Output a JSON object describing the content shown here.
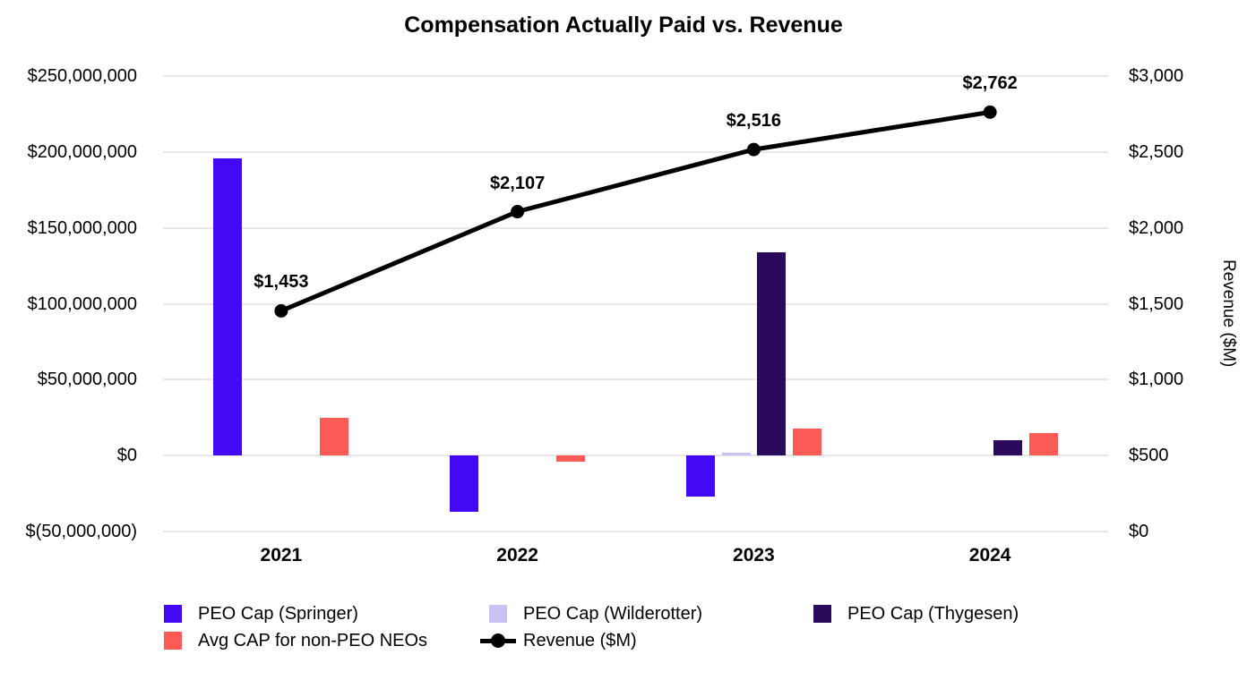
{
  "title": "Compensation Actually Paid vs. Revenue",
  "chart_data": {
    "type": "combo",
    "title": "Compensation Actually Paid vs. Revenue",
    "categories": [
      "2021",
      "2022",
      "2023",
      "2024"
    ],
    "series": [
      {
        "name": "PEO Cap (Springer)",
        "type": "bar",
        "color": "#4309f5",
        "values": [
          196000000,
          -37000000,
          -27000000,
          0
        ]
      },
      {
        "name": "PEO Cap (Wilderotter)",
        "type": "bar",
        "color": "#c9c2f5",
        "values": [
          0,
          0,
          2000000,
          0
        ]
      },
      {
        "name": "PEO Cap (Thygesen)",
        "type": "bar",
        "color": "#2b0a5c",
        "values": [
          0,
          0,
          134000000,
          10000000
        ]
      },
      {
        "name": "Avg CAP for non-PEO NEOs",
        "type": "bar",
        "color": "#fa5b55",
        "values": [
          25000000,
          -4000000,
          18000000,
          15000000
        ]
      },
      {
        "name": "Revenue ($M)",
        "type": "line",
        "color": "#000000",
        "axis": "right",
        "values": [
          1453,
          2107,
          2516,
          2762
        ],
        "point_labels": [
          "$1,453",
          "$2,107",
          "$2,516",
          "$2,762"
        ]
      }
    ],
    "left_axis": {
      "min": -50000000,
      "max": 250000000,
      "ticks": [
        "$250,000,000",
        "$200,000,000",
        "$150,000,000",
        "$100,000,000",
        "$50,000,000",
        "$0",
        "$(50,000,000)"
      ]
    },
    "right_axis": {
      "title": "Revenue ($M)",
      "min": 0,
      "max": 3000,
      "ticks": [
        "$3,000",
        "$2,500",
        "$2,000",
        "$1,500",
        "$1,000",
        "$500",
        "$0"
      ]
    },
    "grid": "horizontal",
    "legend_position": "bottom",
    "background": "#ffffff",
    "gridline_color": "#e7e7e7"
  }
}
